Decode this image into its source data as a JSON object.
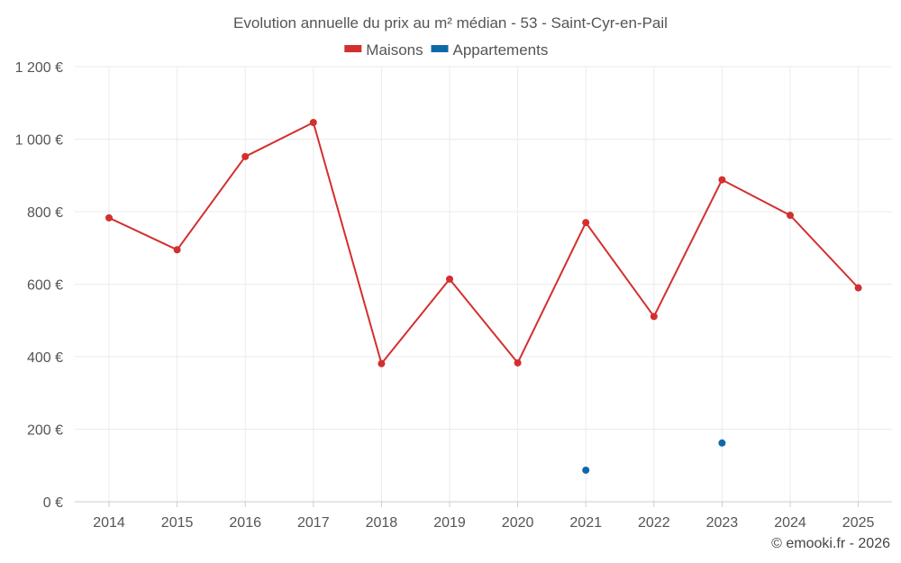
{
  "chart_data": {
    "type": "line",
    "title": "Evolution annuelle du prix au m² médian - 53 - Saint-Cyr-en-Pail",
    "categories": [
      "2014",
      "2015",
      "2016",
      "2017",
      "2018",
      "2019",
      "2020",
      "2021",
      "2022",
      "2023",
      "2024",
      "2025"
    ],
    "yticks": [
      0,
      200,
      400,
      600,
      800,
      1000,
      1200
    ],
    "ytick_labels": [
      "0 €",
      "200 €",
      "400 €",
      "600 €",
      "800 €",
      "1 000 €",
      "1 200 €"
    ],
    "ylim": [
      0,
      1200
    ],
    "grid": true,
    "legend_position": "top",
    "series": [
      {
        "name": "Maisons",
        "color": "#d32f2f",
        "mode": "line+markers",
        "values": [
          783,
          695,
          952,
          1046,
          381,
          614,
          383,
          770,
          511,
          888,
          790,
          590
        ]
      },
      {
        "name": "Appartements",
        "color": "#0d6aa8",
        "mode": "markers",
        "values": [
          null,
          null,
          null,
          null,
          null,
          null,
          null,
          87,
          null,
          162,
          null,
          null
        ]
      }
    ]
  },
  "credit": "© emooki.fr - 2026"
}
